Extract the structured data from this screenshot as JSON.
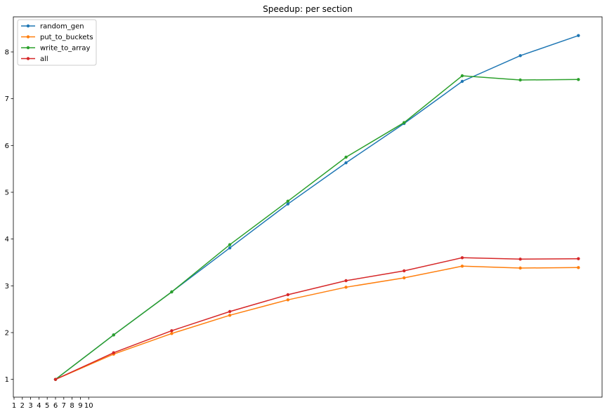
{
  "chart_data": {
    "type": "line",
    "title": "Speedup: per section",
    "xlabel": "",
    "ylabel": "",
    "x_tick_labels": [
      "1",
      "2",
      "3",
      "4",
      "5",
      "6",
      "7",
      "8",
      "9",
      "10"
    ],
    "y_ticks": [
      1,
      2,
      3,
      4,
      5,
      6,
      7,
      8
    ],
    "ylim": [
      0.62,
      8.75
    ],
    "grid": false,
    "legend_position": "top-left",
    "series": [
      {
        "name": "random_gen",
        "color": "#1f77b4",
        "values": [
          1.0,
          1.95,
          2.87,
          3.81,
          4.75,
          5.63,
          6.47,
          7.37,
          7.92,
          8.35
        ]
      },
      {
        "name": "put_to_buckets",
        "color": "#ff7f0e",
        "values": [
          1.0,
          1.54,
          1.98,
          2.37,
          2.7,
          2.97,
          3.17,
          3.42,
          3.38,
          3.39
        ]
      },
      {
        "name": "write_to_array",
        "color": "#2ca02c",
        "values": [
          1.0,
          1.95,
          2.87,
          3.88,
          4.81,
          5.75,
          6.49,
          7.49,
          7.4,
          7.41
        ]
      },
      {
        "name": "all",
        "color": "#d62728",
        "values": [
          1.0,
          1.57,
          2.04,
          2.45,
          2.81,
          3.11,
          3.32,
          3.6,
          3.57,
          3.58
        ]
      }
    ]
  }
}
